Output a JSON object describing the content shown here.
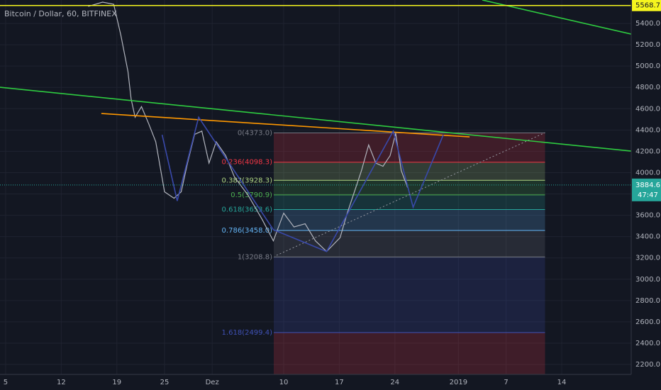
{
  "chart_data": {
    "type": "line",
    "title": "Bitcoin / Dollar, 60, BITFINEX",
    "color": "#b2b5be",
    "x": [
      10.4,
      12.2,
      13.6,
      14.5,
      15.4,
      15.8,
      16.3,
      17.1,
      18.0,
      18.9,
      20.0,
      21.2,
      22.1,
      22.9,
      23.8,
      24.7,
      25.6,
      26.5,
      27.7,
      28.8,
      30.5,
      32.3,
      33.7,
      35.0,
      36.3,
      37.7,
      39.0,
      40.4,
      42.1,
      43.0,
      43.9,
      44.8,
      45.7,
      46.6,
      47.5,
      48.4,
      49.1,
      49.8,
      50.6
    ],
    "values": [
      5560,
      5600,
      5580,
      5290,
      4950,
      4690,
      4520,
      4620,
      4460,
      4290,
      3820,
      3760,
      3820,
      4090,
      4360,
      4390,
      4090,
      4290,
      4160,
      3960,
      3790,
      3560,
      3360,
      3620,
      3490,
      3520,
      3360,
      3260,
      3390,
      3620,
      3820,
      4020,
      4260,
      4090,
      4060,
      4160,
      4370,
      4020,
      3860
    ],
    "xlim": [
      -0.71,
      78.75
    ],
    "ylim": [
      2107,
      5620
    ],
    "xticks": [
      {
        "value": 0,
        "label": "5"
      },
      {
        "value": 7,
        "label": "12"
      },
      {
        "value": 14,
        "label": "19"
      },
      {
        "value": 20,
        "label": "25"
      },
      {
        "value": 26,
        "label": "Dez"
      },
      {
        "value": 35,
        "label": "10"
      },
      {
        "value": 42,
        "label": "17"
      },
      {
        "value": 49,
        "label": "24"
      },
      {
        "value": 57,
        "label": "2019"
      },
      {
        "value": 63,
        "label": "7"
      },
      {
        "value": 70,
        "label": "14"
      }
    ],
    "yticks": [
      {
        "value": 2200,
        "label": "2200.0"
      },
      {
        "value": 2400,
        "label": "2400.0"
      },
      {
        "value": 2600,
        "label": "2600.0"
      },
      {
        "value": 2800,
        "label": "2800.0"
      },
      {
        "value": 3000,
        "label": "3000.0"
      },
      {
        "value": 3200,
        "label": "3200.0"
      },
      {
        "value": 3400,
        "label": "3400.0"
      },
      {
        "value": 3600,
        "label": "3600.0"
      },
      {
        "value": 3800,
        "label": "3800.0"
      },
      {
        "value": 4000,
        "label": "4000.0"
      },
      {
        "value": 4200,
        "label": "4200.0"
      },
      {
        "value": 4400,
        "label": "4400.0"
      },
      {
        "value": 4600,
        "label": "4600.0"
      },
      {
        "value": 4800,
        "label": "4800.0"
      },
      {
        "value": 5000,
        "label": "5000.0"
      },
      {
        "value": 5200,
        "label": "5200.0"
      },
      {
        "value": 5400,
        "label": "5400.0"
      }
    ],
    "grid": true,
    "last_price": {
      "value": 3884.6,
      "label": "3884.6",
      "color": "#26a69a"
    },
    "countdown": "47:47",
    "horizontal_line": {
      "value": 5568.7,
      "label": "5568.7",
      "color": "#f5f51e"
    },
    "fib_range": [
      33.75,
      67.9
    ],
    "fib_below_color": "#f23645",
    "fib_levels": [
      {
        "label": "0(4373.0)",
        "value": 4373.0,
        "color": "#787b86"
      },
      {
        "label": "0.236(4098.3)",
        "value": 4098.3,
        "color": "#f23645"
      },
      {
        "label": "0.382(3928.3)",
        "value": 3928.3,
        "color": "#aed581"
      },
      {
        "label": "0.5(3790.9)",
        "value": 3790.9,
        "color": "#4caf50"
      },
      {
        "label": "0.618(3653.6)",
        "value": 3653.6,
        "color": "#26a69a"
      },
      {
        "label": "0.786(3458.0)",
        "value": 3458.0,
        "color": "#64b5f6"
      },
      {
        "label": "1(3208.8)",
        "value": 3208.8,
        "color": "#787b86"
      },
      {
        "label": "1.618(2499.4)",
        "value": 2499.4,
        "color": "#3f51b5"
      }
    ],
    "lines": [
      {
        "color": "#2ecc40",
        "x": [
          -0.71,
          78.75
        ],
        "values": [
          4801,
          4202
        ]
      },
      {
        "color": "#2ecc40",
        "x": [
          60,
          78.75
        ],
        "values": [
          5620,
          5300
        ]
      },
      {
        "color": "#ff9800",
        "x": [
          12.05,
          58.4
        ],
        "values": [
          4555,
          4335
        ]
      },
      {
        "color": "#3949ab",
        "x": [
          19.7,
          21.6,
          24.3,
          33.7,
          40.4,
          48.8,
          51.3,
          55.1
        ],
        "values": [
          4355,
          3735,
          4520,
          3465,
          3260,
          4390,
          3675,
          4355
        ]
      },
      {
        "color": "#9598a1",
        "dash": true,
        "x": [
          34.1,
          67.9
        ],
        "values": [
          3224,
          4375
        ]
      }
    ]
  }
}
